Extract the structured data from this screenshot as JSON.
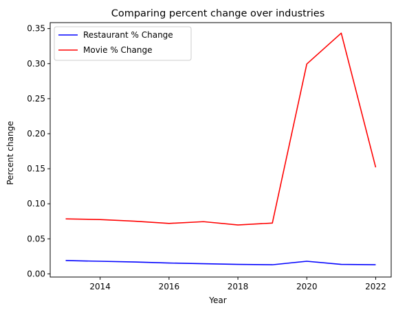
{
  "chart_data": {
    "type": "line",
    "title": "Comparing percent change over industries",
    "xlabel": "Year",
    "ylabel": "Percent change",
    "x": [
      2013,
      2014,
      2015,
      2016,
      2017,
      2018,
      2019,
      2020,
      2021,
      2022
    ],
    "xlim": [
      2012.55,
      2022.45
    ],
    "ylim": [
      -0.0045,
      0.3585
    ],
    "xticks": [
      2014,
      2016,
      2018,
      2020,
      2022
    ],
    "yticks": [
      "0.00",
      "0.05",
      "0.10",
      "0.15",
      "0.20",
      "0.25",
      "0.30",
      "0.35"
    ],
    "grid": false,
    "legend_position": "upper left",
    "series": [
      {
        "name": "Restaurant % Change",
        "color": "#0000ff",
        "values": [
          0.019,
          0.018,
          0.017,
          0.0155,
          0.0145,
          0.0135,
          0.013,
          0.018,
          0.0135,
          0.013
        ]
      },
      {
        "name": "Movie % Change",
        "color": "#ff0000",
        "values": [
          0.0785,
          0.0775,
          0.0752,
          0.072,
          0.0745,
          0.0698,
          0.0725,
          0.2995,
          0.3435,
          0.152
        ]
      }
    ]
  }
}
